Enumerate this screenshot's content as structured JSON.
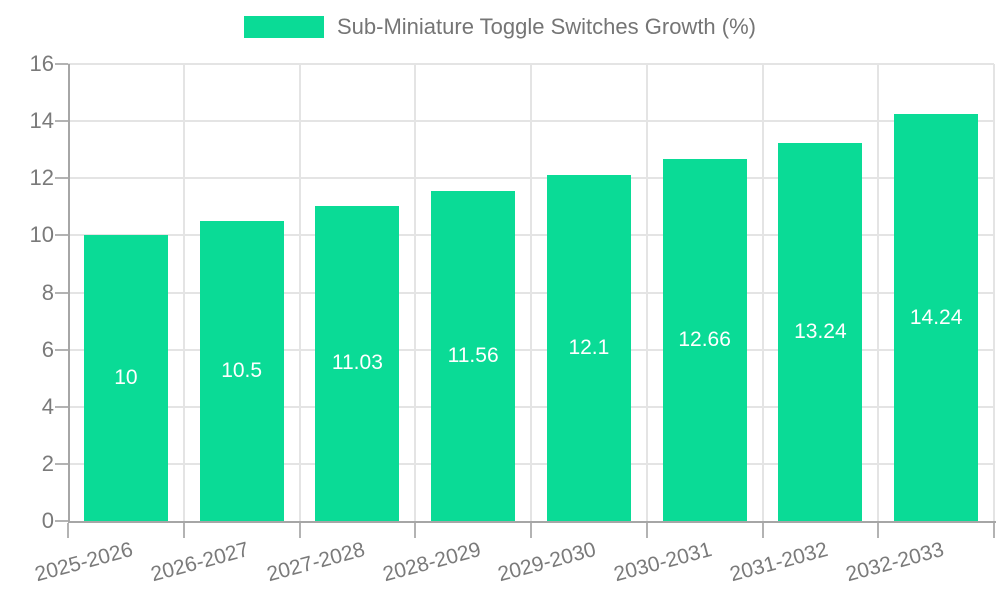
{
  "legend": {
    "label": "Sub-Miniature Toggle Switches Growth (%)"
  },
  "colors": {
    "bar": "#0adb96",
    "value_label": "#ffffff",
    "grid_line": "#e4e4e4",
    "axis_line": "#a6a6a6",
    "tick_mark": "#b3b3b3",
    "tick_label": "#7a7a7a",
    "legend_text": "#757575",
    "background": "#ffffff"
  },
  "chart_data": {
    "type": "bar",
    "title": "Sub-Miniature Toggle Switches Growth (%)",
    "categories": [
      "2025-2026",
      "2026-2027",
      "2027-2028",
      "2028-2029",
      "2029-2030",
      "2030-2031",
      "2031-2032",
      "2032-2033"
    ],
    "series": [
      {
        "name": "Sub-Miniature Toggle Switches Growth (%)",
        "values": [
          10,
          10.5,
          11.03,
          11.56,
          12.1,
          12.66,
          13.24,
          14.24
        ],
        "value_labels": [
          "10",
          "10.5",
          "11.03",
          "11.56",
          "12.1",
          "12.66",
          "13.24",
          "14.24"
        ]
      }
    ],
    "xlabel": "",
    "ylabel": "",
    "ylim": [
      0,
      16
    ],
    "ytick_step": 2,
    "ytick_labels": [
      "0",
      "2",
      "4",
      "6",
      "8",
      "10",
      "12",
      "14",
      "16"
    ],
    "grid": true,
    "grid_vertical": true,
    "legend_position": "top-center",
    "value_labels_inside_bars": true,
    "xtick_label_rotation_deg": -15
  }
}
